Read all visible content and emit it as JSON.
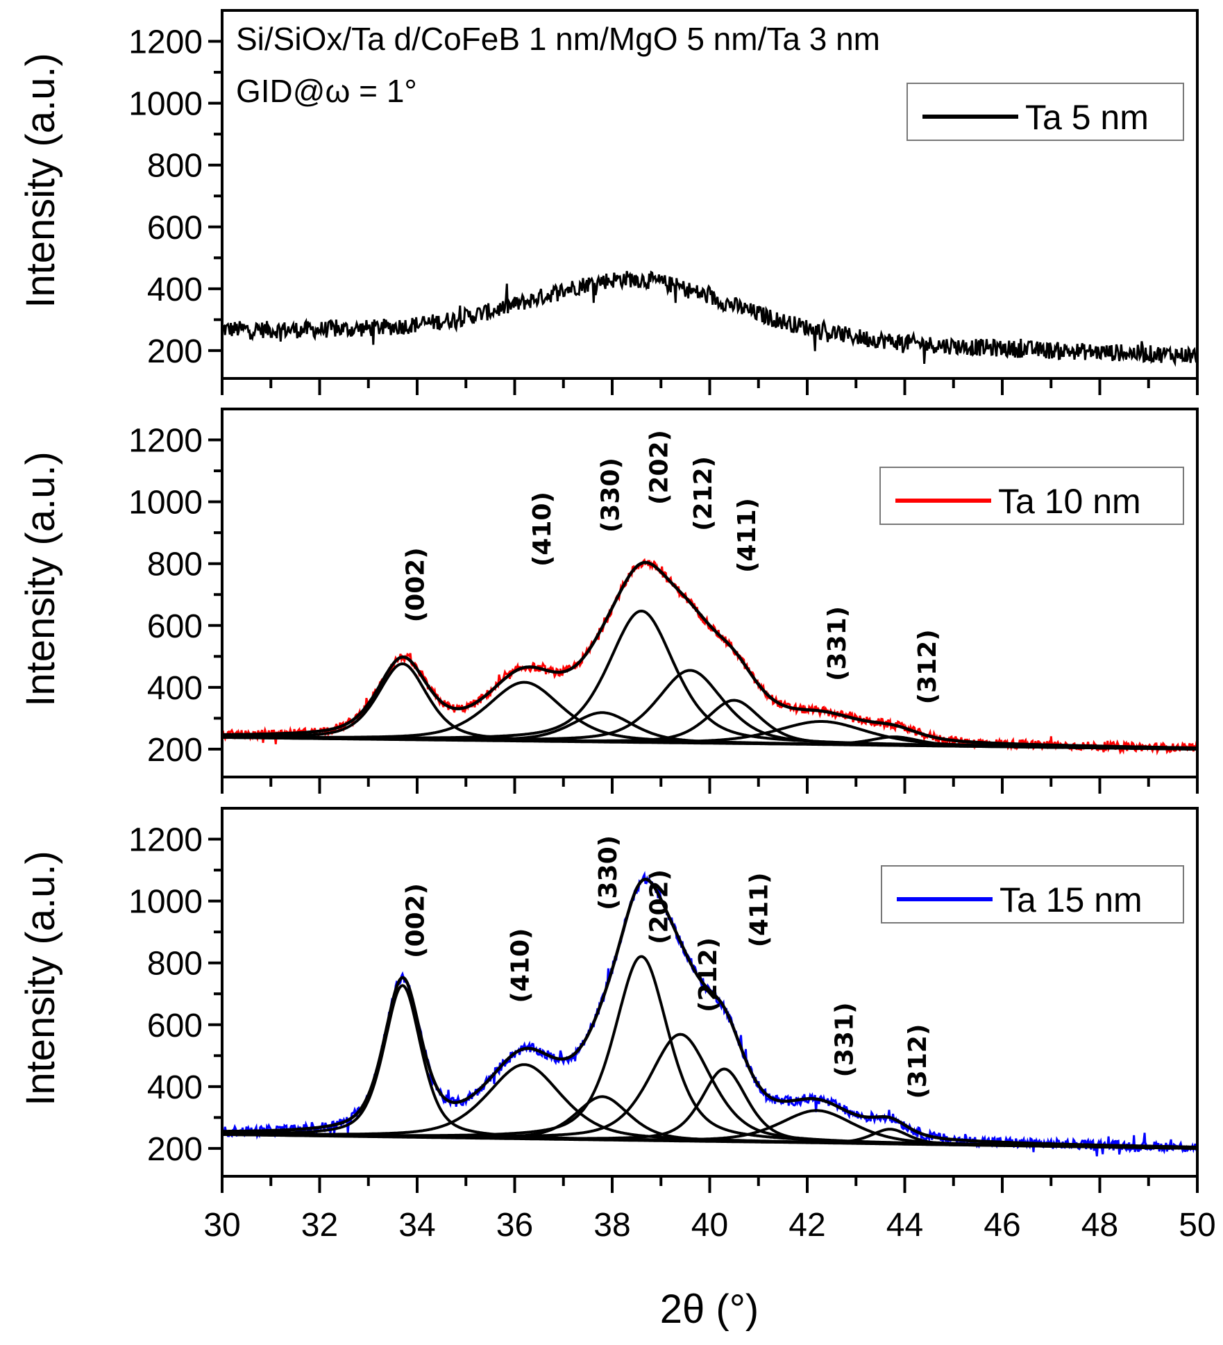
{
  "chart_data": {
    "type": "line",
    "xlabel": "2θ (°)",
    "ylabel": "Intensity (a.u.)",
    "xlim": [
      30,
      50
    ],
    "ylim": [
      110,
      1300
    ],
    "x_ticks": [
      30,
      32,
      34,
      36,
      38,
      40,
      42,
      44,
      46,
      48,
      50
    ],
    "y_ticks": [
      200,
      400,
      600,
      800,
      1000,
      1200
    ],
    "grid": false,
    "annotations": [
      "Si/SiOx/Ta d/CoFeB 1 nm/MgO 5 nm/Ta 3 nm",
      "GID@ω = 1°"
    ],
    "panels": [
      {
        "legend": "Ta 5 nm",
        "color": "#000000",
        "legend_position": "top-right",
        "baseline": [
          260,
          180
        ],
        "noise": 28,
        "peaks": [
          {
            "hkl": "",
            "center": 38.4,
            "height": 205,
            "fwhm": 5.2
          }
        ],
        "show_components": false
      },
      {
        "legend": "Ta 10 nm",
        "color": "#ff0000",
        "legend_position": "top-right",
        "baseline": [
          238,
          200
        ],
        "noise": 14,
        "peaks": [
          {
            "hkl": "(002)",
            "center": 33.7,
            "height": 245,
            "fwhm": 1.2,
            "label_at": [
              33.95,
              610
            ]
          },
          {
            "hkl": "(410)",
            "center": 36.2,
            "height": 190,
            "fwhm": 1.8,
            "label_at": [
              36.55,
              790
            ]
          },
          {
            "hkl": "(330)",
            "center": 37.8,
            "height": 95,
            "fwhm": 1.5,
            "label_at": [
              37.95,
              900
            ]
          },
          {
            "hkl": "(202)",
            "center": 38.6,
            "height": 425,
            "fwhm": 1.6,
            "label_at": [
              38.95,
              990
            ]
          },
          {
            "hkl": "(212)",
            "center": 39.6,
            "height": 235,
            "fwhm": 1.6,
            "label_at": [
              39.85,
              905
            ]
          },
          {
            "hkl": "(411)",
            "center": 40.5,
            "height": 140,
            "fwhm": 1.3,
            "label_at": [
              40.75,
              770
            ]
          },
          {
            "hkl": "(331)",
            "center": 42.3,
            "height": 75,
            "fwhm": 2.2,
            "label_at": [
              42.6,
              420
            ]
          },
          {
            "hkl": "(312)",
            "center": 43.8,
            "height": 28,
            "fwhm": 1.2,
            "label_at": [
              44.45,
              345
            ]
          }
        ],
        "show_components": true
      },
      {
        "legend": "Ta 15 nm",
        "color": "#0000ff",
        "legend_position": "top-right",
        "baseline": [
          245,
          200
        ],
        "noise": 16,
        "peaks": [
          {
            "hkl": "(002)",
            "center": 33.7,
            "height": 490,
            "fwhm": 0.9,
            "label_at": [
              33.95,
              815
            ]
          },
          {
            "hkl": "(410)",
            "center": 36.2,
            "height": 240,
            "fwhm": 1.8,
            "label_at": [
              36.1,
              670
            ]
          },
          {
            "hkl": "(330)",
            "center": 37.8,
            "height": 140,
            "fwhm": 1.3,
            "label_at": [
              37.9,
              970
            ]
          },
          {
            "hkl": "(202)",
            "center": 38.6,
            "height": 595,
            "fwhm": 1.3,
            "label_at": [
              38.95,
              860
            ]
          },
          {
            "hkl": "(212)",
            "center": 39.4,
            "height": 345,
            "fwhm": 1.5,
            "label_at": [
              39.95,
              640
            ]
          },
          {
            "hkl": "(411)",
            "center": 40.3,
            "height": 235,
            "fwhm": 1.1,
            "label_at": [
              41.0,
              850
            ]
          },
          {
            "hkl": "(331)",
            "center": 42.2,
            "height": 105,
            "fwhm": 1.8,
            "label_at": [
              42.75,
              430
            ]
          },
          {
            "hkl": "(312)",
            "center": 43.7,
            "height": 48,
            "fwhm": 0.9,
            "label_at": [
              44.25,
              360
            ]
          }
        ],
        "show_components": true
      }
    ]
  }
}
